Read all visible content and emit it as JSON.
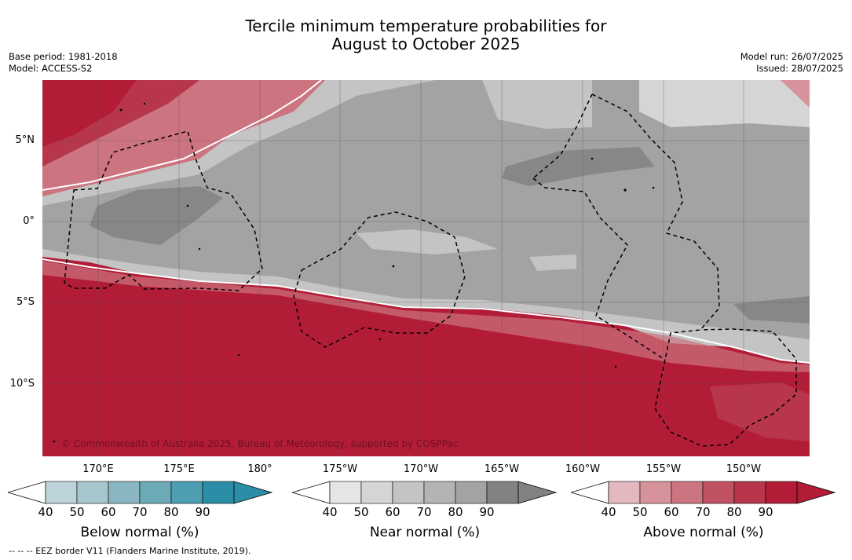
{
  "title_line1": "Tercile minimum temperature probabilities for",
  "title_line2": "August to October 2025",
  "meta_left": {
    "base_period": "Base period: 1981-2018",
    "model": "Model: ACCESS-S2"
  },
  "meta_right": {
    "model_run": "Model run: 26/07/2025",
    "issued": "Issued: 28/07/2025"
  },
  "lat_labels": [
    "5°N",
    "0°",
    "5°S",
    "10°S"
  ],
  "lon_labels": [
    "170°E",
    "175°E",
    "180°",
    "175°W",
    "170°W",
    "165°W",
    "160°W",
    "155°W",
    "150°W"
  ],
  "copyright": "© Commonwealth of Australia 2025, Bureau of Meteorology, supported by COSPPac",
  "colorbars": [
    {
      "title": "Below normal (%)",
      "ticks": [
        "40",
        "50",
        "60",
        "70",
        "80",
        "90"
      ],
      "colors": [
        "#bdd3da",
        "#a6c7cd",
        "#8ab6c1",
        "#6caab8",
        "#4c9eb0",
        "#2b8ea6"
      ]
    },
    {
      "title": "Near normal (%)",
      "ticks": [
        "40",
        "50",
        "60",
        "70",
        "80",
        "90"
      ],
      "colors": [
        "#e5e5e5",
        "#d5d5d5",
        "#c4c4c4",
        "#b4b4b4",
        "#a3a3a3",
        "#828282"
      ]
    },
    {
      "title": "Above normal (%)",
      "ticks": [
        "40",
        "50",
        "60",
        "70",
        "80",
        "90"
      ],
      "colors": [
        "#e3b9bf",
        "#d7939c",
        "#cc747f",
        "#c15264",
        "#b8364b",
        "#b31c37"
      ]
    }
  ],
  "footnote": "-- -- -- EEZ border V11 (Flanders Marine Institute, 2019).",
  "colors": {
    "above_max": "#b31c37",
    "near_max": "#878787",
    "near_mid": "#a3a3a3",
    "near_low": "#c4c4c4"
  }
}
